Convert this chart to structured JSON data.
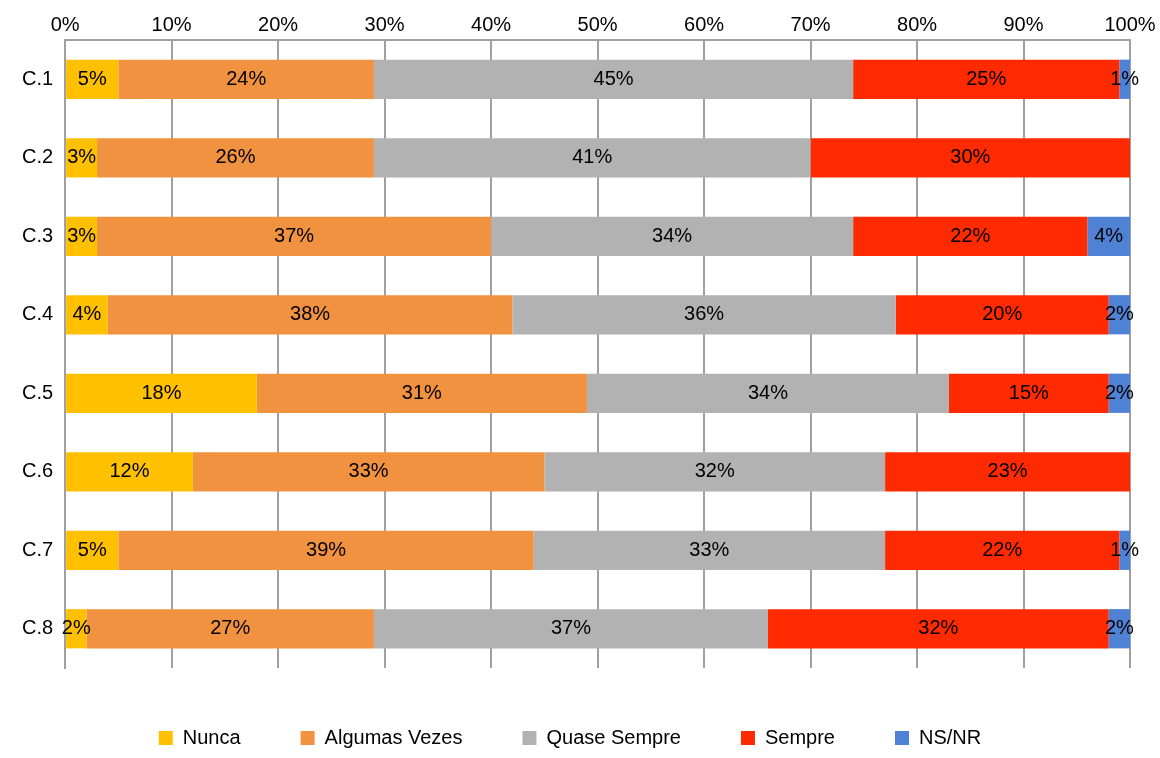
{
  "chart_data": {
    "type": "bar",
    "orientation": "horizontal",
    "stacked": true,
    "categories": [
      "C.1",
      "C.2",
      "C.3",
      "C.4",
      "C.5",
      "C.6",
      "C.7",
      "C.8"
    ],
    "series": [
      {
        "name": "Nunca",
        "color": "#ffc000",
        "values": [
          5,
          3,
          3,
          4,
          18,
          12,
          5,
          2
        ],
        "value_labels": [
          "5%",
          "3%",
          "3%",
          "4%",
          "18%",
          "12%",
          "5%",
          "2%"
        ]
      },
      {
        "name": "Algumas Vezes",
        "color": "#f0923f",
        "values": [
          24,
          26,
          37,
          38,
          31,
          33,
          39,
          27
        ],
        "value_labels": [
          "24%",
          "26%",
          "37%",
          "38%",
          "31%",
          "33%",
          "39%",
          "27%"
        ]
      },
      {
        "name": "Quase Sempre",
        "color": "#b2b2b2",
        "values": [
          45,
          41,
          34,
          36,
          34,
          32,
          33,
          37
        ],
        "value_labels": [
          "45%",
          "41%",
          "34%",
          "36%",
          "34%",
          "32%",
          "33%",
          "37%"
        ]
      },
      {
        "name": "Sempre",
        "color": "#ff2a00",
        "values": [
          25,
          30,
          22,
          20,
          15,
          23,
          22,
          32
        ],
        "value_labels": [
          "25%",
          "30%",
          "22%",
          "20%",
          "15%",
          "23%",
          "22%",
          "32%"
        ]
      },
      {
        "name": "NS/NR",
        "color": "#4f81d4",
        "values": [
          1,
          0,
          4,
          2,
          2,
          0,
          1,
          2
        ],
        "value_labels": [
          "1%",
          null,
          "4%",
          "2%",
          "2%",
          null,
          "1%",
          "2%"
        ]
      }
    ],
    "xlim": [
      0,
      100
    ],
    "xticks": [
      {
        "value": 0,
        "label": "0%"
      },
      {
        "value": 10,
        "label": "10%"
      },
      {
        "value": 20,
        "label": "20%"
      },
      {
        "value": 30,
        "label": "30%"
      },
      {
        "value": 40,
        "label": "40%"
      },
      {
        "value": 50,
        "label": "50%"
      },
      {
        "value": 60,
        "label": "60%"
      },
      {
        "value": 70,
        "label": "70%"
      },
      {
        "value": 80,
        "label": "80%"
      },
      {
        "value": 90,
        "label": "90%"
      },
      {
        "value": 100,
        "label": "100%"
      }
    ],
    "grid": "x",
    "legend": "bottom"
  }
}
